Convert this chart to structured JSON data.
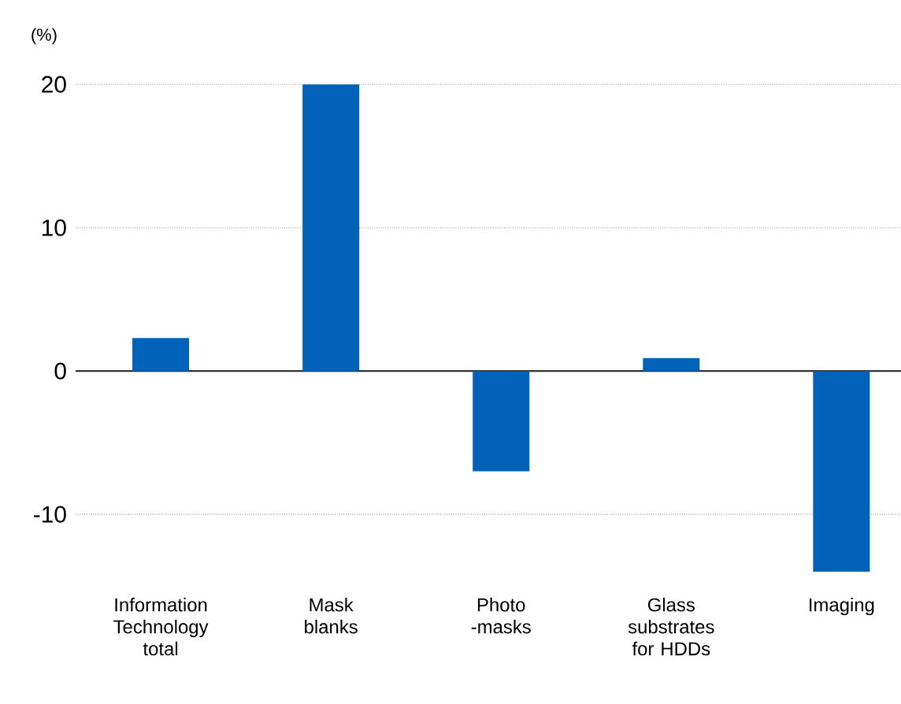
{
  "chart_data": {
    "type": "bar",
    "ylabel": "(%)",
    "categories": [
      "Information Technology total",
      "Mask blanks",
      "Photo -masks",
      "Glass substrates for HDDs",
      "Imaging"
    ],
    "values": [
      2.3,
      20,
      -7,
      0.9,
      -14
    ],
    "color": "#0062b8",
    "ylim": [
      -14,
      20
    ],
    "yticks": [
      -10,
      0,
      10,
      20
    ],
    "grid": "y"
  }
}
